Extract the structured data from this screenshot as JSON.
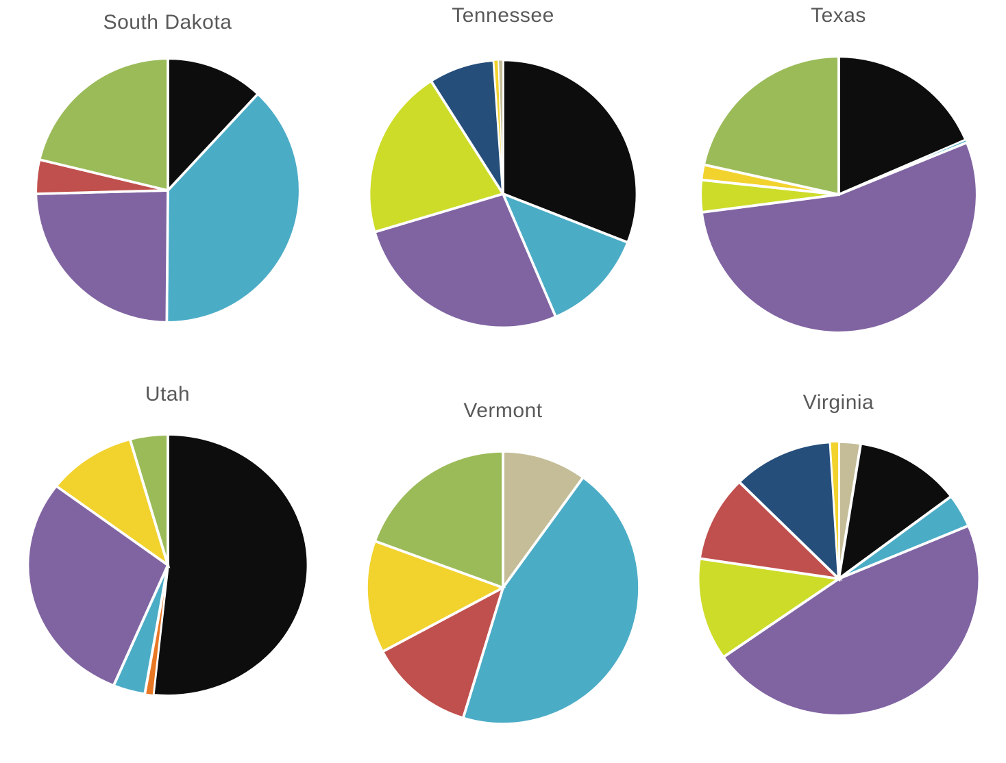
{
  "palette": {
    "black": "#0D0D0D",
    "teal": "#4BACC6",
    "purple": "#8064A2",
    "red": "#C0504D",
    "green": "#9BBB59",
    "chartreuse": "#CDDC29",
    "navy": "#254E7B",
    "yellow": "#F2D22D",
    "tan": "#C4BD97",
    "orange": "#E87724"
  },
  "title_color": "#595959",
  "gap_color": "#FFFFFF",
  "chart_data": [
    {
      "type": "pie",
      "title": "South Dakota",
      "legend": "none",
      "start_angle_deg": 0,
      "slices": [
        {
          "label": "black",
          "hex": "#0D0D0D",
          "deg": 43.0,
          "percent": 11.9
        },
        {
          "label": "teal",
          "hex": "#4BACC6",
          "deg": 137.5,
          "percent": 38.2
        },
        {
          "label": "purple",
          "hex": "#8064A2",
          "deg": 88.0,
          "percent": 24.4
        },
        {
          "label": "red",
          "hex": "#C0504D",
          "deg": 15.0,
          "percent": 4.2
        },
        {
          "label": "green",
          "hex": "#9BBB59",
          "deg": 76.5,
          "percent": 21.3
        }
      ]
    },
    {
      "type": "pie",
      "title": "Tennessee",
      "legend": "none",
      "start_angle_deg": 0,
      "slices": [
        {
          "label": "black",
          "hex": "#0D0D0D",
          "deg": 111.3,
          "percent": 30.9
        },
        {
          "label": "teal",
          "hex": "#4BACC6",
          "deg": 45.5,
          "percent": 12.6
        },
        {
          "label": "purple",
          "hex": "#8064A2",
          "deg": 96.6,
          "percent": 26.8
        },
        {
          "label": "chartreuse",
          "hex": "#CDDC29",
          "deg": 74.1,
          "percent": 20.6
        },
        {
          "label": "navy",
          "hex": "#254E7B",
          "deg": 28.5,
          "percent": 7.9
        },
        {
          "label": "yellow",
          "hex": "#F2D22D",
          "deg": 2.0,
          "percent": 0.6
        },
        {
          "label": "tan",
          "hex": "#C4BD97",
          "deg": 2.0,
          "percent": 0.6
        }
      ]
    },
    {
      "type": "pie",
      "title": "Texas",
      "legend": "none",
      "start_angle_deg": 0,
      "slices": [
        {
          "label": "black",
          "hex": "#0D0D0D",
          "deg": 66.7,
          "percent": 18.5
        },
        {
          "label": "teal",
          "hex": "#4BACC6",
          "deg": 1.2,
          "percent": 0.3
        },
        {
          "label": "purple",
          "hex": "#8064A2",
          "deg": 194.7,
          "percent": 54.1
        },
        {
          "label": "chartreuse",
          "hex": "#CDDC29",
          "deg": 13.5,
          "percent": 3.8
        },
        {
          "label": "yellow",
          "hex": "#F2D22D",
          "deg": 6.4,
          "percent": 1.8
        },
        {
          "label": "green",
          "hex": "#9BBB59",
          "deg": 77.5,
          "percent": 21.5
        }
      ]
    },
    {
      "type": "pie",
      "title": "Utah",
      "legend": "none",
      "start_angle_deg": 0,
      "slices": [
        {
          "label": "black",
          "hex": "#0D0D0D",
          "deg": 186.0,
          "percent": 51.7
        },
        {
          "label": "orange",
          "hex": "#E87724",
          "deg": 3.5,
          "percent": 1.0
        },
        {
          "label": "teal",
          "hex": "#4BACC6",
          "deg": 13.3,
          "percent": 3.7
        },
        {
          "label": "purple",
          "hex": "#8064A2",
          "deg": 104.4,
          "percent": 29.0
        },
        {
          "label": "yellow",
          "hex": "#F2D22D",
          "deg": 37.1,
          "percent": 10.3
        },
        {
          "label": "green",
          "hex": "#9BBB59",
          "deg": 15.7,
          "percent": 4.4
        }
      ]
    },
    {
      "type": "pie",
      "title": "Vermont",
      "legend": "none",
      "start_angle_deg": 0,
      "slices": [
        {
          "label": "tan",
          "hex": "#C4BD97",
          "deg": 36.0,
          "percent": 10.0
        },
        {
          "label": "teal",
          "hex": "#4BACC6",
          "deg": 161.0,
          "percent": 44.7
        },
        {
          "label": "red",
          "hex": "#C0504D",
          "deg": 45.0,
          "percent": 12.5
        },
        {
          "label": "yellow",
          "hex": "#F2D22D",
          "deg": 48.0,
          "percent": 13.3
        },
        {
          "label": "green",
          "hex": "#9BBB59",
          "deg": 70.0,
          "percent": 19.4
        }
      ]
    },
    {
      "type": "pie",
      "title": "Virginia",
      "legend": "none",
      "start_angle_deg": 0,
      "slices": [
        {
          "label": "tan",
          "hex": "#C4BD97",
          "deg": 9.0,
          "percent": 2.5
        },
        {
          "label": "black",
          "hex": "#0D0D0D",
          "deg": 44.0,
          "percent": 12.2
        },
        {
          "label": "teal",
          "hex": "#4BACC6",
          "deg": 14.2,
          "percent": 3.9
        },
        {
          "label": "purple",
          "hex": "#8064A2",
          "deg": 167.9,
          "percent": 46.6
        },
        {
          "label": "chartreuse",
          "hex": "#CDDC29",
          "deg": 43.4,
          "percent": 12.1
        },
        {
          "label": "red",
          "hex": "#C0504D",
          "deg": 36.5,
          "percent": 10.1
        },
        {
          "label": "navy",
          "hex": "#254E7B",
          "deg": 41.5,
          "percent": 11.5
        },
        {
          "label": "yellow",
          "hex": "#F2D22D",
          "deg": 3.5,
          "percent": 1.0
        }
      ]
    }
  ]
}
